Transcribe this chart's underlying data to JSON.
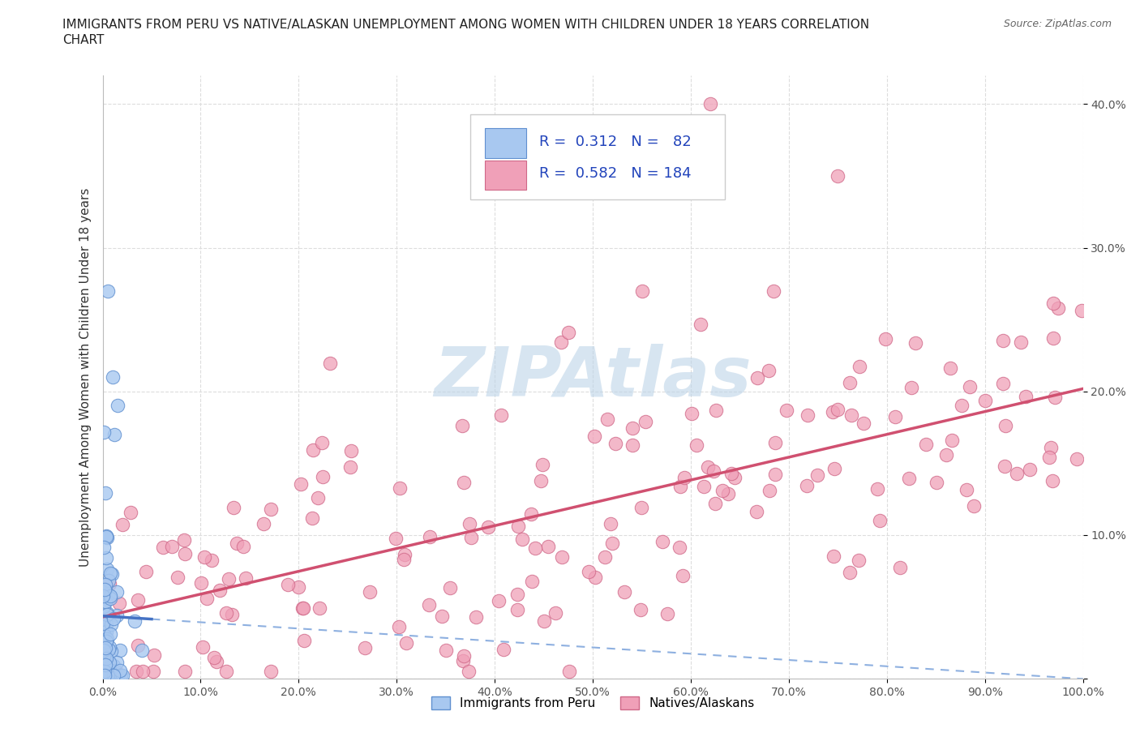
{
  "title_line1": "IMMIGRANTS FROM PERU VS NATIVE/ALASKAN UNEMPLOYMENT AMONG WOMEN WITH CHILDREN UNDER 18 YEARS CORRELATION",
  "title_line2": "CHART",
  "source": "Source: ZipAtlas.com",
  "ylabel": "Unemployment Among Women with Children Under 18 years",
  "xlim": [
    0.0,
    1.0
  ],
  "ylim": [
    0.0,
    0.42
  ],
  "xticks": [
    0.0,
    0.1,
    0.2,
    0.3,
    0.4,
    0.5,
    0.6,
    0.7,
    0.8,
    0.9,
    1.0
  ],
  "yticks": [
    0.0,
    0.1,
    0.2,
    0.3,
    0.4
  ],
  "xticklabels": [
    "0.0%",
    "10.0%",
    "20.0%",
    "30.0%",
    "40.0%",
    "50.0%",
    "60.0%",
    "70.0%",
    "80.0%",
    "90.0%",
    "100.0%"
  ],
  "yticklabels_right": [
    "",
    "10.0%",
    "20.0%",
    "30.0%",
    "40.0%"
  ],
  "blue_fill": "#A8C8F0",
  "blue_edge": "#6090D0",
  "pink_fill": "#F0A0B8",
  "pink_edge": "#D06888",
  "trend_blue_solid": "#4472C4",
  "trend_blue_dash": "#8EB0E0",
  "trend_pink_color": "#D05070",
  "R_blue": 0.312,
  "N_blue": 82,
  "R_pink": 0.582,
  "N_pink": 184,
  "legend_label_blue": "Immigrants from Peru",
  "legend_label_pink": "Natives/Alaskans",
  "watermark": "ZIPAtlas",
  "watermark_color": "#BDD4E8",
  "grid_color": "#DDDDDD",
  "background_color": "#FFFFFF",
  "legend_text_color": "#2244BB",
  "title_fontsize": 11,
  "source_fontsize": 9,
  "tick_fontsize": 10,
  "ylabel_fontsize": 11
}
